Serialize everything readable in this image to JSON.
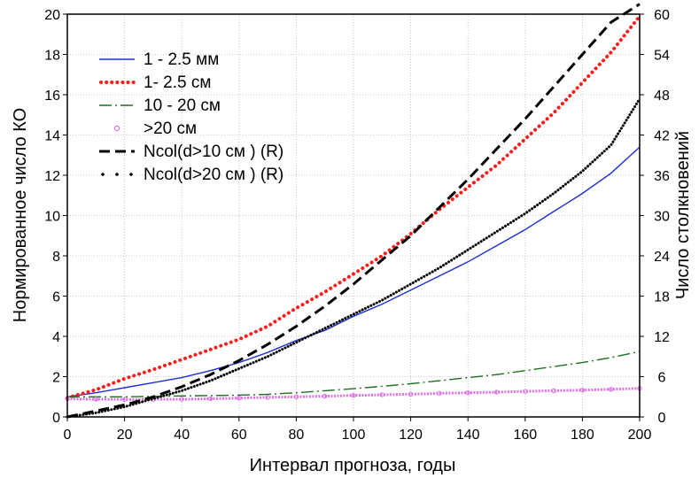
{
  "chart_data": {
    "type": "line",
    "title": "",
    "xlabel": "Интервал прогноза, годы",
    "ylabel": "Нормированное число КО",
    "ylabel_right": "Число столкновений",
    "xlim": [
      0,
      200
    ],
    "ylim": [
      0,
      20
    ],
    "ylim_right": [
      0,
      60
    ],
    "grid": true,
    "legend_position": "top-left",
    "x_ticks": [
      "0",
      "20",
      "40",
      "60",
      "80",
      "100",
      "120",
      "140",
      "160",
      "180",
      "200"
    ],
    "y_ticks": [
      "0",
      "2",
      "4",
      "6",
      "8",
      "10",
      "12",
      "14",
      "16",
      "18",
      "20"
    ],
    "y_ticks_right": [
      "0",
      "6",
      "12",
      "18",
      "24",
      "30",
      "36",
      "42",
      "48",
      "54",
      "60"
    ],
    "x": [
      0,
      10,
      20,
      30,
      40,
      50,
      60,
      70,
      80,
      90,
      100,
      110,
      120,
      130,
      140,
      150,
      160,
      170,
      180,
      190,
      200
    ],
    "series": [
      {
        "name": "1 - 2.5 мм",
        "axis": "left",
        "color": "#1a2fd6",
        "style": "solid",
        "values": [
          1.0,
          1.2,
          1.45,
          1.7,
          1.95,
          2.3,
          2.7,
          3.2,
          3.8,
          4.3,
          5.0,
          5.6,
          6.3,
          7.0,
          7.7,
          8.5,
          9.3,
          10.2,
          11.1,
          12.1,
          13.4
        ]
      },
      {
        "name": "1- 2.5 см",
        "axis": "left",
        "color": "#ff1a1a",
        "style": "dotted",
        "values": [
          0.95,
          1.35,
          1.9,
          2.35,
          2.85,
          3.35,
          3.85,
          4.5,
          5.4,
          6.2,
          7.1,
          8.0,
          9.1,
          10.3,
          11.4,
          12.5,
          13.8,
          15.1,
          16.6,
          18.1,
          19.9
        ]
      },
      {
        "name": "10 - 20 см",
        "axis": "left",
        "color": "#1e6e1e",
        "style": "dashdot",
        "values": [
          1.0,
          1.0,
          1.0,
          1.02,
          1.04,
          1.06,
          1.08,
          1.12,
          1.2,
          1.3,
          1.4,
          1.52,
          1.65,
          1.8,
          1.95,
          2.1,
          2.3,
          2.5,
          2.7,
          2.95,
          3.25
        ]
      },
      {
        "name": ">20 см",
        "axis": "left",
        "color": "#e070e8",
        "style": "circles",
        "values": [
          0.9,
          0.88,
          0.87,
          0.87,
          0.88,
          0.9,
          0.93,
          0.97,
          1.0,
          1.03,
          1.07,
          1.1,
          1.13,
          1.17,
          1.2,
          1.23,
          1.27,
          1.3,
          1.33,
          1.37,
          1.42
        ]
      },
      {
        "name": "Ncol(d>10 см ) (R)",
        "axis": "right",
        "color": "#000000",
        "style": "dashed",
        "values": [
          0,
          0.9,
          1.8,
          3.0,
          4.5,
          6.3,
          8.4,
          10.8,
          13.5,
          16.5,
          19.8,
          23.4,
          27.0,
          31.2,
          35.4,
          39.9,
          44.4,
          49.2,
          54.0,
          58.8,
          61.5
        ]
      },
      {
        "name": "Ncol(d>20 см ) (R)",
        "axis": "right",
        "color": "#000000",
        "style": "dots",
        "values": [
          0,
          0.6,
          1.5,
          2.7,
          3.9,
          5.4,
          7.2,
          9.0,
          11.1,
          13.2,
          15.3,
          17.4,
          19.8,
          22.2,
          24.9,
          27.6,
          30.3,
          33.3,
          36.6,
          40.5,
          47.4
        ]
      }
    ]
  }
}
